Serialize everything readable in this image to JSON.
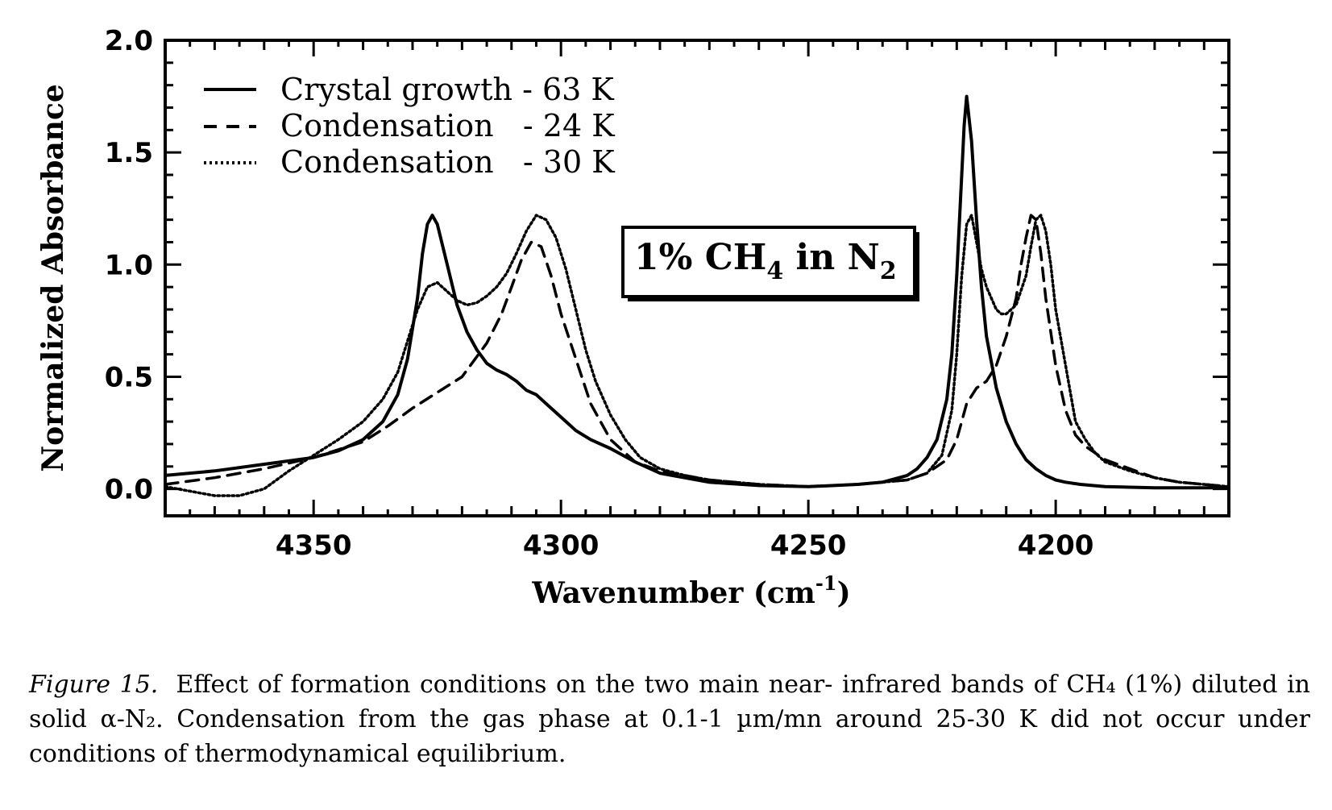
{
  "chart_data": {
    "type": "line",
    "xlabel": "Wavenumber (cm",
    "xlabel_sup": "-1",
    "xlabel_end": ")",
    "ylabel": "Normalized Absorbance",
    "xlim": [
      4380,
      4165
    ],
    "ylim": [
      -0.12,
      2.0
    ],
    "x_reversed": true,
    "x_ticks": [
      4350,
      4300,
      4250,
      4200
    ],
    "y_ticks": [
      "0.0",
      "0.5",
      "1.0",
      "1.5",
      "2.0"
    ],
    "y_tick_values": [
      0,
      0.5,
      1.0,
      1.5,
      2.0
    ],
    "legend_position": "top-left",
    "annotation": {
      "text_main": "1% CH",
      "sub1": "4",
      "text_mid": " in N",
      "sub2": "2"
    },
    "series": [
      {
        "name": "Crystal growth - 63 K",
        "style": "solid",
        "x": [
          4380,
          4370,
          4360,
          4350,
          4345,
          4340,
          4336,
          4333,
          4331,
          4329,
          4328,
          4327,
          4326,
          4325,
          4323,
          4321,
          4319,
          4317,
          4315,
          4313,
          4311,
          4309,
          4307,
          4305,
          4303,
          4300,
          4297,
          4294,
          4290,
          4285,
          4280,
          4270,
          4260,
          4250,
          4240,
          4235,
          4230,
          4228,
          4226,
          4224,
          4222,
          4221,
          4220,
          4219,
          4218.5,
          4218,
          4217,
          4216,
          4215,
          4214,
          4212,
          4210,
          4208,
          4206,
          4204,
          4202,
          4200,
          4198,
          4195,
          4190,
          4180,
          4170,
          4165
        ],
        "y": [
          0.06,
          0.08,
          0.11,
          0.14,
          0.17,
          0.22,
          0.3,
          0.42,
          0.58,
          0.85,
          1.05,
          1.18,
          1.22,
          1.18,
          1.0,
          0.82,
          0.7,
          0.62,
          0.56,
          0.53,
          0.51,
          0.48,
          0.44,
          0.42,
          0.38,
          0.32,
          0.26,
          0.22,
          0.18,
          0.12,
          0.07,
          0.03,
          0.015,
          0.01,
          0.02,
          0.03,
          0.06,
          0.09,
          0.14,
          0.22,
          0.4,
          0.6,
          0.95,
          1.4,
          1.62,
          1.75,
          1.55,
          1.2,
          0.9,
          0.68,
          0.45,
          0.3,
          0.2,
          0.13,
          0.09,
          0.06,
          0.04,
          0.03,
          0.02,
          0.01,
          0.005,
          0.005,
          0.005
        ]
      },
      {
        "name": "Condensation   - 24 K",
        "style": "dashed",
        "x": [
          4380,
          4370,
          4360,
          4350,
          4340,
          4335,
          4330,
          4325,
          4320,
          4315,
          4312,
          4310,
          4308,
          4306,
          4304,
          4302,
          4300,
          4297,
          4294,
          4290,
          4285,
          4280,
          4270,
          4260,
          4250,
          4240,
          4230,
          4226,
          4222,
          4220,
          4218,
          4216,
          4214,
          4212,
          4210,
          4208,
          4207,
          4206,
          4205,
          4204,
          4203,
          4202,
          4200,
          4198,
          4196,
          4194,
          4192,
          4190,
          4185,
          4180,
          4175,
          4170,
          4165
        ],
        "y": [
          0.02,
          0.05,
          0.09,
          0.14,
          0.21,
          0.28,
          0.36,
          0.43,
          0.5,
          0.65,
          0.78,
          0.9,
          1.02,
          1.1,
          1.08,
          0.95,
          0.78,
          0.58,
          0.38,
          0.22,
          0.12,
          0.08,
          0.04,
          0.02,
          0.01,
          0.02,
          0.04,
          0.07,
          0.13,
          0.22,
          0.38,
          0.45,
          0.48,
          0.55,
          0.68,
          0.85,
          1.0,
          1.12,
          1.22,
          1.2,
          1.05,
          0.85,
          0.55,
          0.35,
          0.24,
          0.19,
          0.16,
          0.13,
          0.09,
          0.05,
          0.03,
          0.02,
          0.01
        ]
      },
      {
        "name": "Condensation   - 30 K",
        "style": "dotted",
        "x": [
          4380,
          4375,
          4370,
          4365,
          4360,
          4355,
          4350,
          4345,
          4340,
          4336,
          4333,
          4331,
          4329,
          4327,
          4325,
          4323,
          4321,
          4319,
          4317,
          4315,
          4313,
          4311,
          4309,
          4307,
          4305,
          4303,
          4301,
          4299,
          4297,
          4295,
          4293,
          4290,
          4287,
          4284,
          4280,
          4275,
          4270,
          4260,
          4250,
          4240,
          4230,
          4226,
          4223,
          4221,
          4220,
          4219,
          4218,
          4217,
          4216,
          4215,
          4214,
          4213,
          4212,
          4211,
          4210,
          4208,
          4206,
          4205,
          4204,
          4203,
          4202,
          4201,
          4200,
          4198,
          4196,
          4194,
          4192,
          4190,
          4185,
          4180,
          4175,
          4170,
          4165
        ],
        "y": [
          0.01,
          -0.01,
          -0.03,
          -0.03,
          0.0,
          0.08,
          0.15,
          0.22,
          0.3,
          0.4,
          0.52,
          0.66,
          0.8,
          0.9,
          0.92,
          0.88,
          0.84,
          0.82,
          0.83,
          0.86,
          0.9,
          0.96,
          1.05,
          1.15,
          1.22,
          1.2,
          1.12,
          0.98,
          0.8,
          0.62,
          0.48,
          0.33,
          0.22,
          0.14,
          0.09,
          0.06,
          0.04,
          0.02,
          0.01,
          0.02,
          0.04,
          0.07,
          0.15,
          0.35,
          0.6,
          0.95,
          1.18,
          1.22,
          1.1,
          0.98,
          0.9,
          0.85,
          0.8,
          0.78,
          0.78,
          0.82,
          0.95,
          1.08,
          1.2,
          1.22,
          1.15,
          1.0,
          0.8,
          0.55,
          0.3,
          0.22,
          0.16,
          0.12,
          0.08,
          0.05,
          0.03,
          0.02,
          0.01
        ]
      }
    ]
  },
  "caption": {
    "label": "Figure 15.",
    "text": "Effect of formation conditions on the two main near- infrared bands of CH₄ (1%) diluted in solid α-N₂. Condensation from the gas phase at 0.1-1 µm/mn around 25-30 K did not occur under conditions of thermodynamical equilibrium."
  }
}
